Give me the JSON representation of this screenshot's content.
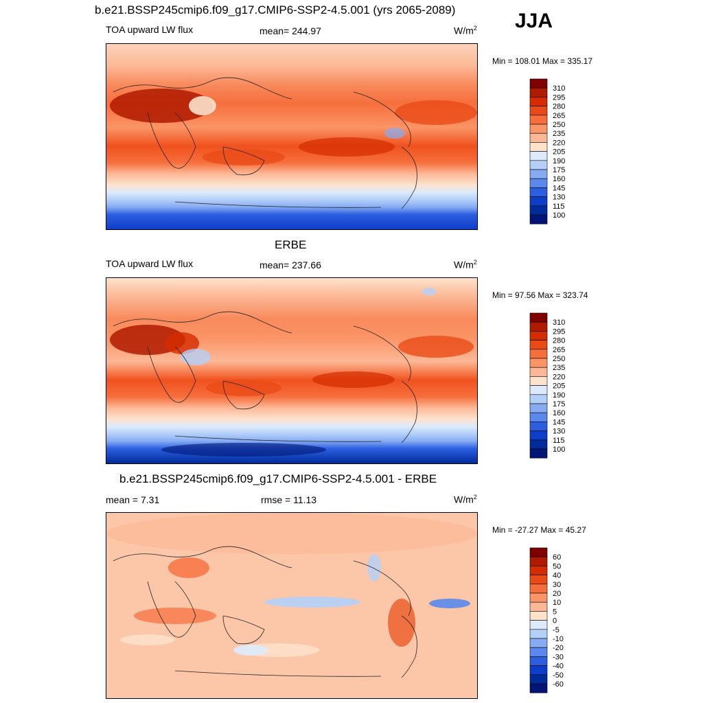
{
  "season": "JJA",
  "units_main": "W/m",
  "units_sup": "2",
  "panels": [
    {
      "title": "b.e21.BSSP245cmip6.f09_g17.CMIP6-SSP2-4.5.001 (yrs 2065-2089)",
      "variable": "TOA upward LW flux",
      "mean": "mean= 244.97",
      "minmax": "Min = 108.01 Max = 335.17",
      "colorbar": [
        "310",
        "295",
        "280",
        "265",
        "250",
        "235",
        "220",
        "205",
        "190",
        "175",
        "160",
        "145",
        "130",
        "115",
        "100"
      ]
    },
    {
      "title": "ERBE",
      "variable": "TOA upward LW flux",
      "mean": "mean= 237.66",
      "minmax": "Min =  97.56 Max = 323.74",
      "colorbar": [
        "310",
        "295",
        "280",
        "265",
        "250",
        "235",
        "220",
        "205",
        "190",
        "175",
        "160",
        "145",
        "130",
        "115",
        "100"
      ]
    },
    {
      "title": "b.e21.BSSP245cmip6.f09_g17.CMIP6-SSP2-4.5.001 - ERBE",
      "mean": "mean =   7.31",
      "rmse": "rmse =  11.13",
      "minmax": "Min = -27.27 Max =  45.27",
      "colorbar": [
        "60",
        "50",
        "40",
        "30",
        "20",
        "10",
        "5",
        "0",
        "-5",
        "-10",
        "-20",
        "-30",
        "-40",
        "-50",
        "-60"
      ]
    }
  ],
  "colors": {
    "scale": [
      "#800000",
      "#b01a00",
      "#d42c00",
      "#ea4b16",
      "#f66e3c",
      "#fb9466",
      "#fcb896",
      "#fde2cc",
      "#ddeafb",
      "#b4cff8",
      "#86abf3",
      "#5a88ec",
      "#2c5fe0",
      "#0e3ec8",
      "#002b9a",
      "#001575"
    ]
  }
}
